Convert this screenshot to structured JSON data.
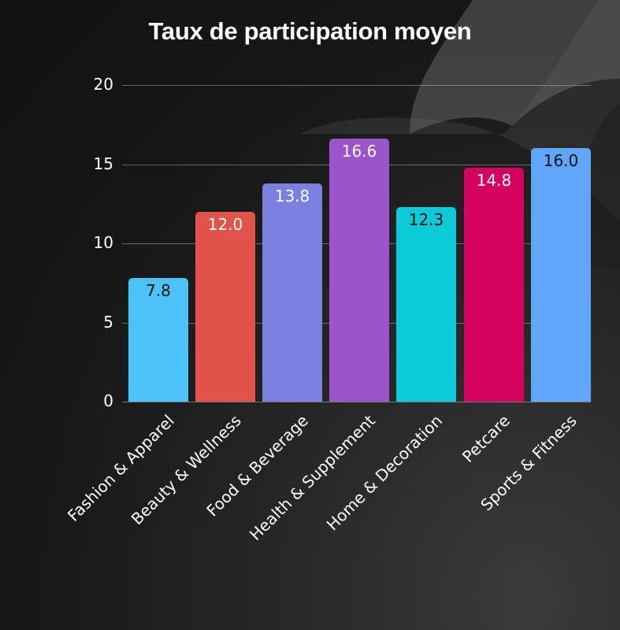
{
  "chart_data": {
    "type": "bar",
    "title": "Taux de participation moyen",
    "xlabel": "",
    "ylabel": "",
    "ylim": [
      0,
      20
    ],
    "yticks": [
      0,
      5,
      10,
      15,
      20
    ],
    "grid": true,
    "categories": [
      "Fashion & Apparel",
      "Beauty & Wellness",
      "Food & Beverage",
      "Health & Supplement",
      "Home & Decoration",
      "Petcare",
      "Sports & Fitness"
    ],
    "values": [
      7.8,
      12.0,
      13.8,
      16.6,
      12.3,
      14.8,
      16.0
    ],
    "value_labels": [
      "7.8",
      "12.0",
      "13.8",
      "16.6",
      "12.3",
      "14.8",
      "16.0"
    ],
    "colors": [
      "#4cc3f8",
      "#e1534a",
      "#7b7fe0",
      "#9b55c9",
      "#0ccbd9",
      "#d4035f",
      "#60a6fa"
    ],
    "label_colors": [
      "#111111",
      "#ffffff",
      "#ffffff",
      "#ffffff",
      "#111111",
      "#ffffff",
      "#111111"
    ]
  },
  "axis": {
    "yticks": [
      "0",
      "5",
      "10",
      "15",
      "20"
    ]
  }
}
